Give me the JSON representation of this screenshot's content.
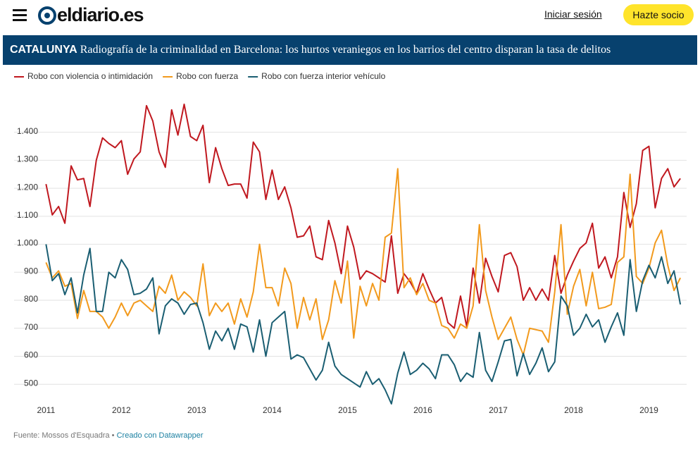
{
  "header": {
    "logo": "eldiario.es",
    "login": "Iniciar sesión",
    "cta": "Hazte socio"
  },
  "banner": {
    "section": "CATALUNYA",
    "title": "Radiografía de la criminalidad en Barcelona: los hurtos veraniegos en los barrios del centro disparan la tasa de delitos"
  },
  "chart_data": {
    "type": "line",
    "x": [
      2011,
      2011.083,
      2011.167,
      2011.25,
      2011.333,
      2011.417,
      2011.5,
      2011.583,
      2011.667,
      2011.75,
      2011.833,
      2011.917,
      2012,
      2012.083,
      2012.167,
      2012.25,
      2012.333,
      2012.417,
      2012.5,
      2012.583,
      2012.667,
      2012.75,
      2012.833,
      2012.917,
      2013,
      2013.083,
      2013.167,
      2013.25,
      2013.333,
      2013.417,
      2013.5,
      2013.583,
      2013.667,
      2013.75,
      2013.833,
      2013.917,
      2014,
      2014.083,
      2014.167,
      2014.25,
      2014.333,
      2014.417,
      2014.5,
      2014.583,
      2014.667,
      2014.75,
      2014.833,
      2014.917,
      2015,
      2015.083,
      2015.167,
      2015.25,
      2015.333,
      2015.417,
      2015.5,
      2015.583,
      2015.667,
      2015.75,
      2015.833,
      2015.917,
      2016,
      2016.083,
      2016.167,
      2016.25,
      2016.333,
      2016.417,
      2016.5,
      2016.583,
      2016.667,
      2016.75,
      2016.833,
      2016.917,
      2017,
      2017.083,
      2017.167,
      2017.25,
      2017.333,
      2017.417,
      2017.5,
      2017.583,
      2017.667,
      2017.75,
      2017.833,
      2017.917,
      2018,
      2018.083,
      2018.167,
      2018.25,
      2018.333,
      2018.417,
      2018.5,
      2018.583,
      2018.667,
      2018.75,
      2018.833,
      2018.917,
      2019,
      2019.083,
      2019.167,
      2019.25,
      2019.333,
      2019.417
    ],
    "series": [
      {
        "name": "Robo con violencia o intimidación",
        "color": "#c0181f",
        "values": [
          1215,
          1105,
          1135,
          1075,
          1280,
          1230,
          1235,
          1135,
          1300,
          1380,
          1360,
          1345,
          1370,
          1250,
          1305,
          1330,
          1495,
          1440,
          1330,
          1275,
          1480,
          1390,
          1500,
          1385,
          1370,
          1425,
          1220,
          1345,
          1270,
          1210,
          1215,
          1215,
          1165,
          1365,
          1330,
          1160,
          1265,
          1160,
          1205,
          1130,
          1025,
          1030,
          1065,
          955,
          945,
          1085,
          1005,
          895,
          1065,
          990,
          875,
          905,
          895,
          880,
          865,
          1030,
          825,
          895,
          865,
          825,
          895,
          840,
          790,
          810,
          720,
          700,
          815,
          705,
          915,
          790,
          950,
          885,
          830,
          960,
          970,
          920,
          800,
          845,
          800,
          840,
          800,
          960,
          825,
          890,
          940,
          985,
          1005,
          1075,
          915,
          955,
          880,
          955,
          1185,
          1060,
          1145,
          1335,
          1350,
          1130,
          1235,
          1270,
          1205,
          1235
        ]
      },
      {
        "name": "Robo con fuerza",
        "color": "#f29a1d",
        "values": [
          935,
          880,
          905,
          850,
          860,
          735,
          835,
          760,
          760,
          740,
          700,
          740,
          790,
          745,
          790,
          800,
          780,
          760,
          850,
          825,
          890,
          800,
          830,
          810,
          780,
          930,
          745,
          790,
          760,
          790,
          715,
          805,
          740,
          830,
          1000,
          845,
          845,
          780,
          915,
          860,
          700,
          810,
          730,
          805,
          660,
          730,
          870,
          790,
          940,
          665,
          850,
          780,
          860,
          800,
          1025,
          1040,
          1270,
          845,
          880,
          820,
          860,
          800,
          790,
          710,
          700,
          665,
          715,
          700,
          780,
          1070,
          835,
          740,
          660,
          700,
          740,
          660,
          605,
          700,
          695,
          690,
          650,
          830,
          1070,
          750,
          850,
          910,
          780,
          900,
          770,
          775,
          785,
          935,
          955,
          1250,
          885,
          860,
          915,
          1005,
          1050,
          925,
          835,
          880
        ]
      },
      {
        "name": "Robo con fuerza interior vehículo",
        "color": "#1a5e72",
        "values": [
          1000,
          870,
          895,
          820,
          880,
          755,
          890,
          985,
          760,
          760,
          900,
          880,
          945,
          910,
          820,
          825,
          840,
          880,
          680,
          780,
          805,
          790,
          750,
          785,
          790,
          720,
          625,
          690,
          655,
          700,
          625,
          715,
          705,
          615,
          730,
          600,
          720,
          740,
          760,
          590,
          605,
          595,
          555,
          515,
          550,
          650,
          565,
          535,
          520,
          505,
          490,
          545,
          500,
          520,
          480,
          430,
          540,
          615,
          535,
          550,
          575,
          555,
          520,
          605,
          605,
          570,
          510,
          540,
          525,
          685,
          550,
          510,
          580,
          655,
          660,
          530,
          610,
          535,
          575,
          630,
          545,
          580,
          815,
          780,
          675,
          700,
          750,
          705,
          730,
          650,
          705,
          755,
          675,
          945,
          760,
          870,
          925,
          880,
          955,
          860,
          905,
          785
        ]
      }
    ],
    "xlim": [
      2010.95,
      2019.5
    ],
    "xticks": [
      2011,
      2012,
      2013,
      2014,
      2015,
      2016,
      2017,
      2018,
      2019
    ],
    "ylim": [
      425,
      1520
    ],
    "yticks": [
      {
        "value": 500,
        "label": "500"
      },
      {
        "value": 600,
        "label": "600"
      },
      {
        "value": 700,
        "label": "700"
      },
      {
        "value": 800,
        "label": "800"
      },
      {
        "value": 900,
        "label": "900"
      },
      {
        "value": 1000,
        "label": "1.000"
      },
      {
        "value": 1100,
        "label": "1.100"
      },
      {
        "value": 1200,
        "label": "1.200"
      },
      {
        "value": 1300,
        "label": "1.300"
      },
      {
        "value": 1400,
        "label": "1.400"
      }
    ],
    "grid": true
  },
  "footer": {
    "source": "Fuente: Mossos d'Esquadra •",
    "credit": "Creado con Datawrapper"
  }
}
